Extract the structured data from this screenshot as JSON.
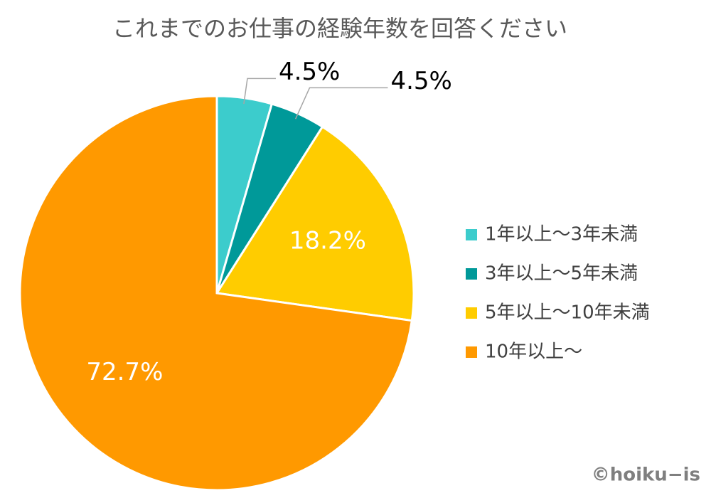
{
  "chart_data": {
    "type": "pie",
    "title": "これまでのお仕事の経験年数を回答ください",
    "categories": [
      "1年以上～3年未満",
      "3年以上～5年未満",
      "5年以上～10年未満",
      "10年以上～"
    ],
    "values": [
      4.5,
      4.5,
      18.2,
      72.7
    ],
    "value_labels": [
      "4.5%",
      "4.5%",
      "18.2%",
      "72.7%"
    ],
    "colors": [
      "#3ccccc",
      "#009999",
      "#ffcc00",
      "#ff9900"
    ],
    "legend": "right"
  },
  "credit": "©hoiku−is"
}
